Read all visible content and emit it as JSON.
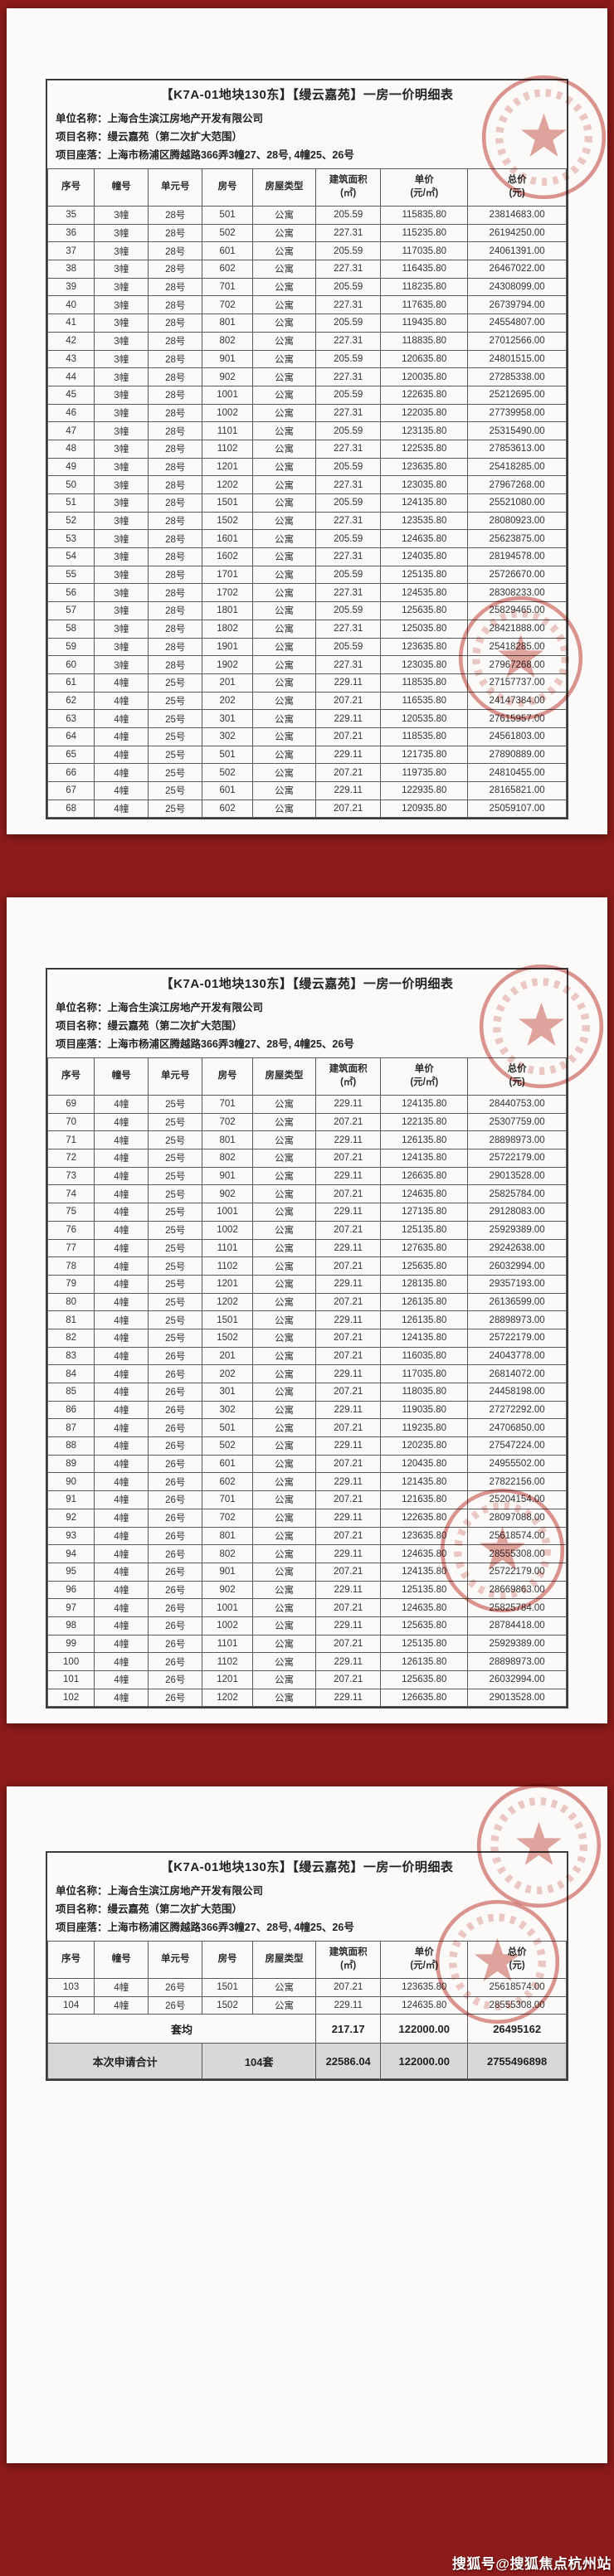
{
  "colors": {
    "background": "#8c1b1b",
    "seal_red": "#c24038",
    "summary_row_bg": "#d8d8d8"
  },
  "watermark": "搜狐号@搜狐焦点杭州站",
  "document": {
    "title": "【K7A-01地块130东】【缦云嘉苑】一房一价明细表",
    "fields": [
      "单位名称：上海合生滨江房地产开发有限公司",
      "项目名称：缦云嘉苑（第二次扩大范围）",
      "项目座落：上海市杨浦区腾越路366弄3幢27、28号, 4幢25、26号"
    ],
    "columns": [
      {
        "line1": "序号"
      },
      {
        "line1": "幢号"
      },
      {
        "line1": "单元号"
      },
      {
        "line1": "房号"
      },
      {
        "line1": "房屋类型"
      },
      {
        "line1": "建筑面积",
        "line2": "(㎡)"
      },
      {
        "line1": "单价",
        "line2": "(元/㎡)"
      },
      {
        "line1": "总价",
        "line2": "(元)"
      }
    ]
  },
  "pages": [
    {
      "rows": [
        [
          "35",
          "3幢",
          "28号",
          "501",
          "公寓",
          "205.59",
          "115835.80",
          "23814683.00"
        ],
        [
          "36",
          "3幢",
          "28号",
          "502",
          "公寓",
          "227.31",
          "115235.80",
          "26194250.00"
        ],
        [
          "37",
          "3幢",
          "28号",
          "601",
          "公寓",
          "205.59",
          "117035.80",
          "24061391.00"
        ],
        [
          "38",
          "3幢",
          "28号",
          "602",
          "公寓",
          "227.31",
          "116435.80",
          "26467022.00"
        ],
        [
          "39",
          "3幢",
          "28号",
          "701",
          "公寓",
          "205.59",
          "118235.80",
          "24308099.00"
        ],
        [
          "40",
          "3幢",
          "28号",
          "702",
          "公寓",
          "227.31",
          "117635.80",
          "26739794.00"
        ],
        [
          "41",
          "3幢",
          "28号",
          "801",
          "公寓",
          "205.59",
          "119435.80",
          "24554807.00"
        ],
        [
          "42",
          "3幢",
          "28号",
          "802",
          "公寓",
          "227.31",
          "118835.80",
          "27012566.00"
        ],
        [
          "43",
          "3幢",
          "28号",
          "901",
          "公寓",
          "205.59",
          "120635.80",
          "24801515.00"
        ],
        [
          "44",
          "3幢",
          "28号",
          "902",
          "公寓",
          "227.31",
          "120035.80",
          "27285338.00"
        ],
        [
          "45",
          "3幢",
          "28号",
          "1001",
          "公寓",
          "205.59",
          "122635.80",
          "25212695.00"
        ],
        [
          "46",
          "3幢",
          "28号",
          "1002",
          "公寓",
          "227.31",
          "122035.80",
          "27739958.00"
        ],
        [
          "47",
          "3幢",
          "28号",
          "1101",
          "公寓",
          "205.59",
          "123135.80",
          "25315490.00"
        ],
        [
          "48",
          "3幢",
          "28号",
          "1102",
          "公寓",
          "227.31",
          "122535.80",
          "27853613.00"
        ],
        [
          "49",
          "3幢",
          "28号",
          "1201",
          "公寓",
          "205.59",
          "123635.80",
          "25418285.00"
        ],
        [
          "50",
          "3幢",
          "28号",
          "1202",
          "公寓",
          "227.31",
          "123035.80",
          "27967268.00"
        ],
        [
          "51",
          "3幢",
          "28号",
          "1501",
          "公寓",
          "205.59",
          "124135.80",
          "25521080.00"
        ],
        [
          "52",
          "3幢",
          "28号",
          "1502",
          "公寓",
          "227.31",
          "123535.80",
          "28080923.00"
        ],
        [
          "53",
          "3幢",
          "28号",
          "1601",
          "公寓",
          "205.59",
          "124635.80",
          "25623875.00"
        ],
        [
          "54",
          "3幢",
          "28号",
          "1602",
          "公寓",
          "227.31",
          "124035.80",
          "28194578.00"
        ],
        [
          "55",
          "3幢",
          "28号",
          "1701",
          "公寓",
          "205.59",
          "125135.80",
          "25726670.00"
        ],
        [
          "56",
          "3幢",
          "28号",
          "1702",
          "公寓",
          "227.31",
          "124535.80",
          "28308233.00"
        ],
        [
          "57",
          "3幢",
          "28号",
          "1801",
          "公寓",
          "205.59",
          "125635.80",
          "25829465.00"
        ],
        [
          "58",
          "3幢",
          "28号",
          "1802",
          "公寓",
          "227.31",
          "125035.80",
          "28421888.00"
        ],
        [
          "59",
          "3幢",
          "28号",
          "1901",
          "公寓",
          "205.59",
          "123635.80",
          "25418285.00"
        ],
        [
          "60",
          "3幢",
          "28号",
          "1902",
          "公寓",
          "227.31",
          "123035.80",
          "27967268.00"
        ],
        [
          "61",
          "4幢",
          "25号",
          "201",
          "公寓",
          "229.11",
          "118535.80",
          "27157737.00"
        ],
        [
          "62",
          "4幢",
          "25号",
          "202",
          "公寓",
          "207.21",
          "116535.80",
          "24147384.00"
        ],
        [
          "63",
          "4幢",
          "25号",
          "301",
          "公寓",
          "229.11",
          "120535.80",
          "27615957.00"
        ],
        [
          "64",
          "4幢",
          "25号",
          "302",
          "公寓",
          "207.21",
          "118535.80",
          "24561803.00"
        ],
        [
          "65",
          "4幢",
          "25号",
          "501",
          "公寓",
          "229.11",
          "121735.80",
          "27890889.00"
        ],
        [
          "66",
          "4幢",
          "25号",
          "502",
          "公寓",
          "207.21",
          "119735.80",
          "24810455.00"
        ],
        [
          "67",
          "4幢",
          "25号",
          "601",
          "公寓",
          "229.11",
          "122935.80",
          "28165821.00"
        ],
        [
          "68",
          "4幢",
          "25号",
          "602",
          "公寓",
          "207.21",
          "120935.80",
          "25059107.00"
        ]
      ]
    },
    {
      "rows": [
        [
          "69",
          "4幢",
          "25号",
          "701",
          "公寓",
          "229.11",
          "124135.80",
          "28440753.00"
        ],
        [
          "70",
          "4幢",
          "25号",
          "702",
          "公寓",
          "207.21",
          "122135.80",
          "25307759.00"
        ],
        [
          "71",
          "4幢",
          "25号",
          "801",
          "公寓",
          "229.11",
          "126135.80",
          "28898973.00"
        ],
        [
          "72",
          "4幢",
          "25号",
          "802",
          "公寓",
          "207.21",
          "124135.80",
          "25722179.00"
        ],
        [
          "73",
          "4幢",
          "25号",
          "901",
          "公寓",
          "229.11",
          "126635.80",
          "29013528.00"
        ],
        [
          "74",
          "4幢",
          "25号",
          "902",
          "公寓",
          "207.21",
          "124635.80",
          "25825784.00"
        ],
        [
          "75",
          "4幢",
          "25号",
          "1001",
          "公寓",
          "229.11",
          "127135.80",
          "29128083.00"
        ],
        [
          "76",
          "4幢",
          "25号",
          "1002",
          "公寓",
          "207.21",
          "125135.80",
          "25929389.00"
        ],
        [
          "77",
          "4幢",
          "25号",
          "1101",
          "公寓",
          "229.11",
          "127635.80",
          "29242638.00"
        ],
        [
          "78",
          "4幢",
          "25号",
          "1102",
          "公寓",
          "207.21",
          "125635.80",
          "26032994.00"
        ],
        [
          "79",
          "4幢",
          "25号",
          "1201",
          "公寓",
          "229.11",
          "128135.80",
          "29357193.00"
        ],
        [
          "80",
          "4幢",
          "25号",
          "1202",
          "公寓",
          "207.21",
          "126135.80",
          "26136599.00"
        ],
        [
          "81",
          "4幢",
          "25号",
          "1501",
          "公寓",
          "229.11",
          "126135.80",
          "28898973.00"
        ],
        [
          "82",
          "4幢",
          "25号",
          "1502",
          "公寓",
          "207.21",
          "124135.80",
          "25722179.00"
        ],
        [
          "83",
          "4幢",
          "26号",
          "201",
          "公寓",
          "207.21",
          "116035.80",
          "24043778.00"
        ],
        [
          "84",
          "4幢",
          "26号",
          "202",
          "公寓",
          "229.11",
          "117035.80",
          "26814072.00"
        ],
        [
          "85",
          "4幢",
          "26号",
          "301",
          "公寓",
          "207.21",
          "118035.80",
          "24458198.00"
        ],
        [
          "86",
          "4幢",
          "26号",
          "302",
          "公寓",
          "229.11",
          "119035.80",
          "27272292.00"
        ],
        [
          "87",
          "4幢",
          "26号",
          "501",
          "公寓",
          "207.21",
          "119235.80",
          "24706850.00"
        ],
        [
          "88",
          "4幢",
          "26号",
          "502",
          "公寓",
          "229.11",
          "120235.80",
          "27547224.00"
        ],
        [
          "89",
          "4幢",
          "26号",
          "601",
          "公寓",
          "207.21",
          "120435.80",
          "24955502.00"
        ],
        [
          "90",
          "4幢",
          "26号",
          "602",
          "公寓",
          "229.11",
          "121435.80",
          "27822156.00"
        ],
        [
          "91",
          "4幢",
          "26号",
          "701",
          "公寓",
          "207.21",
          "121635.80",
          "25204154.00"
        ],
        [
          "92",
          "4幢",
          "26号",
          "702",
          "公寓",
          "229.11",
          "122635.80",
          "28097088.00"
        ],
        [
          "93",
          "4幢",
          "26号",
          "801",
          "公寓",
          "207.21",
          "123635.80",
          "25618574.00"
        ],
        [
          "94",
          "4幢",
          "26号",
          "802",
          "公寓",
          "229.11",
          "124635.80",
          "28555308.00"
        ],
        [
          "95",
          "4幢",
          "26号",
          "901",
          "公寓",
          "207.21",
          "124135.80",
          "25722179.00"
        ],
        [
          "96",
          "4幢",
          "26号",
          "902",
          "公寓",
          "229.11",
          "125135.80",
          "28669863.00"
        ],
        [
          "97",
          "4幢",
          "26号",
          "1001",
          "公寓",
          "207.21",
          "124635.80",
          "25825784.00"
        ],
        [
          "98",
          "4幢",
          "26号",
          "1002",
          "公寓",
          "229.11",
          "125635.80",
          "28784418.00"
        ],
        [
          "99",
          "4幢",
          "26号",
          "1101",
          "公寓",
          "207.21",
          "125135.80",
          "25929389.00"
        ],
        [
          "100",
          "4幢",
          "26号",
          "1102",
          "公寓",
          "229.11",
          "126135.80",
          "28898973.00"
        ],
        [
          "101",
          "4幢",
          "26号",
          "1201",
          "公寓",
          "207.21",
          "125635.80",
          "26032994.00"
        ],
        [
          "102",
          "4幢",
          "26号",
          "1202",
          "公寓",
          "229.11",
          "126635.80",
          "29013528.00"
        ]
      ]
    },
    {
      "rows": [
        [
          "103",
          "4幢",
          "26号",
          "1501",
          "公寓",
          "207.21",
          "123635.80",
          "25618574.00"
        ],
        [
          "104",
          "4幢",
          "26号",
          "1502",
          "公寓",
          "229.11",
          "124635.80",
          "28555308.00"
        ]
      ],
      "summary_avg": {
        "label": "套均",
        "area": "217.17",
        "unit_price": "122000.00",
        "total": "26495162"
      },
      "summary_total": {
        "label": "本次申请合计",
        "count": "104套",
        "area": "22586.04",
        "unit_price": "122000.00",
        "total": "2755496898"
      }
    }
  ]
}
